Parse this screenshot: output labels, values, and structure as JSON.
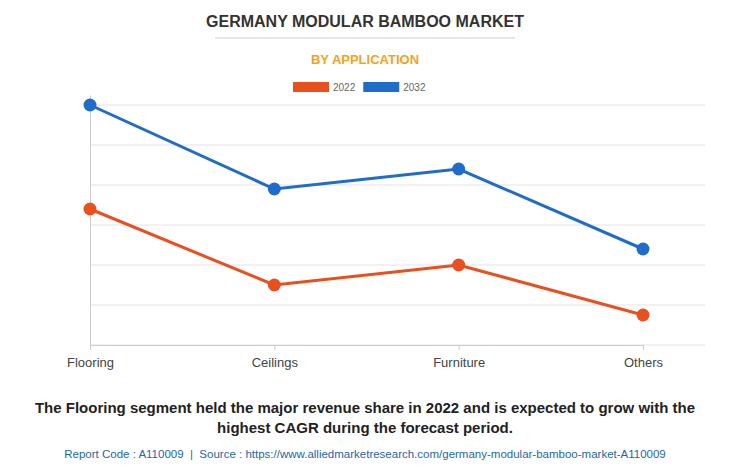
{
  "chart_data": {
    "type": "line",
    "title": "GERMANY MODULAR BAMBOO MARKET",
    "subtitle": "BY APPLICATION",
    "categories": [
      "Flooring",
      "Ceilings",
      "Furniture",
      "Others"
    ],
    "series": [
      {
        "name": "2022",
        "color": "#e8511f",
        "marker": "circle",
        "values": [
          3.4,
          1.5,
          2.0,
          0.75
        ]
      },
      {
        "name": "2032",
        "color": "#1f6cc9",
        "marker": "circle",
        "values": [
          6.0,
          3.9,
          4.4,
          2.4
        ]
      }
    ],
    "ylim": [
      0,
      6.25
    ],
    "yticks": [
      0,
      1,
      2,
      3,
      4,
      5,
      6
    ],
    "grid": true,
    "tick_labels": "x",
    "legend": "top",
    "caption": [
      "The Flooring segment held the major revenue share in 2022 and is expected to grow with the",
      "highest CAGR during the forecast period."
    ],
    "footer": "Report Code : A110009  |  Source : https://www.alliedmarketresearch.com/germany-modular-bamboo-market-A110009"
  }
}
